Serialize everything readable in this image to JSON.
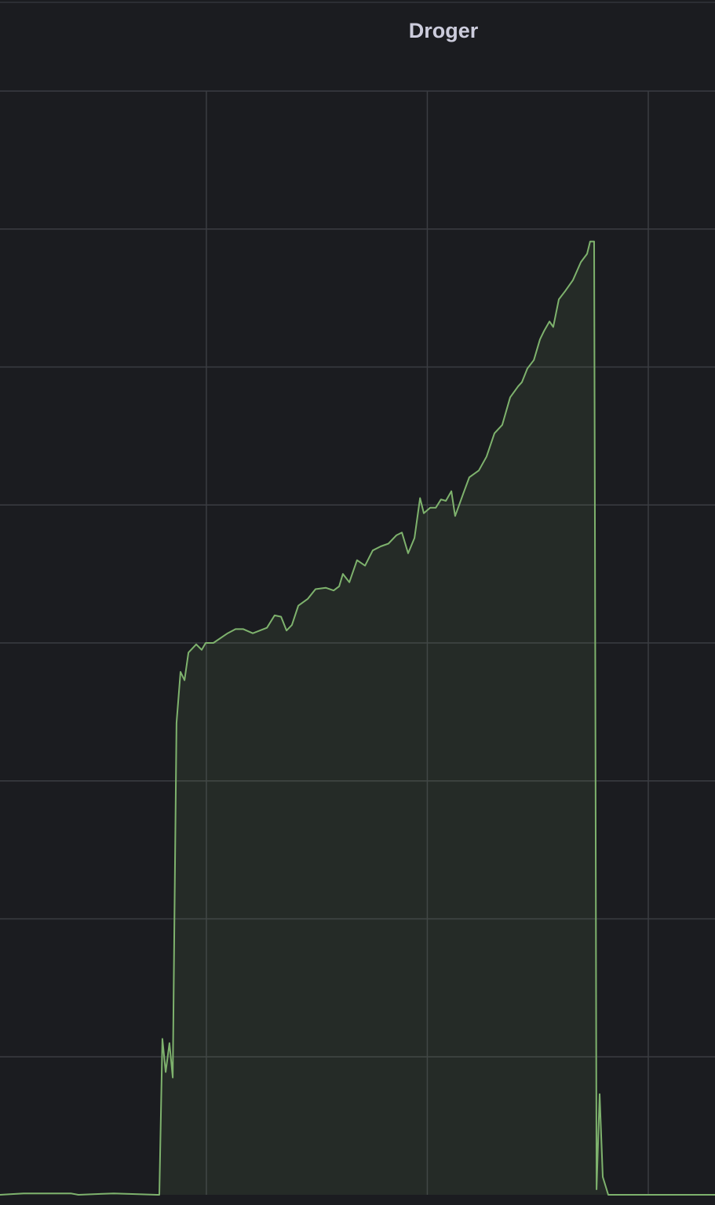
{
  "chart_data": {
    "type": "line",
    "title": "Droger",
    "x": [
      0.066,
      0.173,
      0.386,
      0.421,
      0.581,
      0.776,
      0.787,
      0.801,
      0.816,
      0.833,
      0.848,
      0.865,
      0.883,
      0.901,
      0.919,
      0.954,
      0.979,
      0.997,
      1.032,
      1.096,
      1.132,
      1.167,
      1.21,
      1.274,
      1.309,
      1.338,
      1.363,
      1.387,
      1.416,
      1.459,
      1.494,
      1.54,
      1.576,
      1.601,
      1.618,
      1.647,
      1.682,
      1.718,
      1.753,
      1.789,
      1.824,
      1.86,
      1.885,
      1.913,
      1.942,
      1.967,
      1.984,
      2.013,
      2.038,
      2.062,
      2.084,
      2.109,
      2.126,
      2.162,
      2.19,
      2.233,
      2.268,
      2.304,
      2.339,
      2.375,
      2.411,
      2.428,
      2.453,
      2.482,
      2.51,
      2.528,
      2.553,
      2.57,
      2.595,
      2.624,
      2.659,
      2.695,
      2.723,
      2.737,
      2.755,
      2.759,
      2.766,
      2.78,
      2.794,
      2.819,
      2.979,
      3.192,
      3.302
    ],
    "series": [
      {
        "color": "#7eb26d",
        "values": [
          0,
          0.01,
          0.01,
          0,
          0.01,
          0,
          0,
          1.13,
          0.89,
          1.1,
          0.85,
          3.42,
          3.79,
          3.73,
          3.93,
          3.99,
          3.95,
          4.0,
          4.0,
          4.07,
          4.1,
          4.1,
          4.07,
          4.11,
          4.2,
          4.19,
          4.09,
          4.13,
          4.27,
          4.32,
          4.39,
          4.4,
          4.38,
          4.41,
          4.5,
          4.44,
          4.6,
          4.56,
          4.67,
          4.7,
          4.72,
          4.78,
          4.8,
          4.65,
          4.76,
          5.05,
          4.94,
          4.98,
          4.98,
          5.04,
          5.03,
          5.1,
          4.92,
          5.08,
          5.2,
          5.25,
          5.35,
          5.52,
          5.58,
          5.78,
          5.86,
          5.89,
          5.99,
          6.05,
          6.2,
          6.26,
          6.33,
          6.29,
          6.49,
          6.55,
          6.63,
          6.76,
          6.82,
          6.91,
          6.91,
          4.67,
          0.04,
          0.73,
          0.13,
          0,
          0,
          0,
          0
        ]
      }
    ],
    "xlim": [
      0.066,
      3.302
    ],
    "xticks": [
      1,
      2,
      3
    ],
    "ylim": [
      0,
      8
    ],
    "yticks": [
      1,
      2,
      3,
      4,
      5,
      6,
      7,
      8
    ],
    "grid": true,
    "fill": true
  }
}
